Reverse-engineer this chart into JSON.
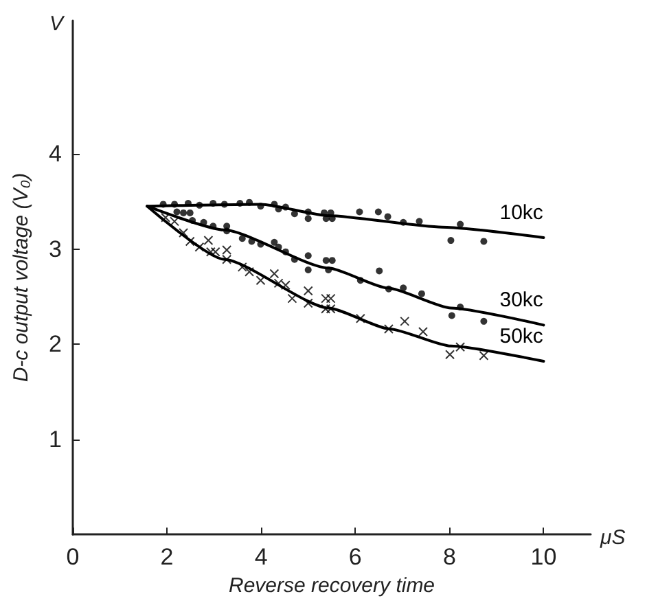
{
  "chart_data": {
    "type": "scatter",
    "xlabel": "Reverse recovery time",
    "ylabel": "D-c output voltage (V₀)",
    "annotations": [
      "V",
      "μS"
    ],
    "xlim": [
      0,
      11
    ],
    "ylim": [
      0,
      5.4
    ],
    "xticks": [
      0,
      2,
      4,
      6,
      8,
      10
    ],
    "yticks": [
      1,
      2,
      3,
      4
    ],
    "grid": false,
    "legend": false,
    "series": [
      {
        "marker": "circle",
        "color": "#000000",
        "x": [
          1.92,
          2.16,
          2.45,
          2.69,
          2.98,
          3.22,
          3.55,
          3.75,
          3.99,
          4.28,
          4.37,
          4.52,
          4.71,
          5.0,
          5.0,
          5.34,
          5.38,
          5.48,
          5.51,
          6.09,
          6.49,
          6.69,
          7.02,
          7.36,
          8.03,
          8.23,
          8.73
        ],
        "values": [
          3.47,
          3.47,
          3.48,
          3.46,
          3.48,
          3.47,
          3.48,
          3.49,
          3.45,
          3.47,
          3.42,
          3.44,
          3.37,
          3.39,
          3.32,
          3.38,
          3.32,
          3.38,
          3.32,
          3.39,
          3.39,
          3.34,
          3.28,
          3.29,
          3.09,
          3.26,
          3.08
        ]
      },
      {
        "marker": "circle",
        "color": "#000000",
        "x": [
          2.21,
          2.35,
          2.49,
          2.54,
          2.78,
          2.98,
          3.27,
          3.27,
          3.6,
          3.8,
          3.99,
          4.28,
          4.37,
          4.52,
          4.71,
          5.0,
          5.0,
          5.38,
          5.51,
          5.43,
          6.11,
          6.51,
          6.71,
          7.02,
          7.41,
          8.05,
          8.23,
          8.73
        ],
        "values": [
          3.39,
          3.38,
          3.38,
          3.3,
          3.28,
          3.24,
          3.24,
          3.19,
          3.11,
          3.08,
          3.05,
          3.07,
          3.02,
          2.97,
          2.89,
          2.93,
          2.78,
          2.88,
          2.88,
          2.78,
          2.67,
          2.77,
          2.58,
          2.59,
          2.53,
          2.3,
          2.39,
          2.24
        ]
      },
      {
        "marker": "cross",
        "color": "#000000",
        "x": [
          1.97,
          2.16,
          2.35,
          2.49,
          2.69,
          2.88,
          2.93,
          3.03,
          3.27,
          3.27,
          3.6,
          3.75,
          3.99,
          4.28,
          4.37,
          4.52,
          4.66,
          5.0,
          5.0,
          5.37,
          5.48,
          5.37,
          5.48,
          6.11,
          6.71,
          7.05,
          7.44,
          8.01,
          8.23,
          8.73
        ],
        "values": [
          3.33,
          3.29,
          3.17,
          3.08,
          3.02,
          3.09,
          2.97,
          2.97,
          2.99,
          2.89,
          2.81,
          2.76,
          2.67,
          2.74,
          2.64,
          2.62,
          2.48,
          2.56,
          2.43,
          2.48,
          2.48,
          2.37,
          2.37,
          2.27,
          2.16,
          2.24,
          2.13,
          1.89,
          1.97,
          1.88
        ]
      },
      {
        "type": "line",
        "name": "10kc",
        "marker": "none",
        "color": "#000000",
        "x": [
          1.58,
          4.0,
          5.43,
          7.84,
          10
        ],
        "values": [
          3.45,
          3.47,
          3.35,
          3.23,
          3.12
        ]
      },
      {
        "type": "line",
        "name": "30kc",
        "marker": "none",
        "color": "#000000",
        "x": [
          1.58,
          3.22,
          5.43,
          6.69,
          8.03,
          10
        ],
        "values": [
          3.45,
          3.2,
          2.8,
          2.59,
          2.38,
          2.2
        ]
      },
      {
        "type": "line",
        "name": "50kc",
        "marker": "none",
        "color": "#000000",
        "x": [
          1.58,
          3.22,
          5.43,
          6.73,
          8.03,
          10
        ],
        "values": [
          3.45,
          2.89,
          2.38,
          2.16,
          1.98,
          1.82
        ]
      }
    ]
  }
}
